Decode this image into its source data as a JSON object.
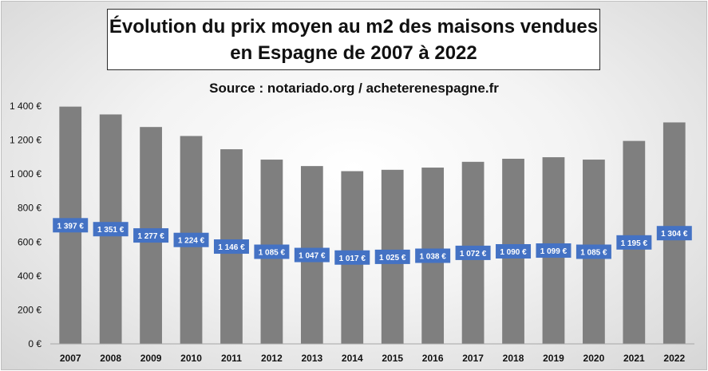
{
  "chart_data": {
    "type": "bar",
    "title_lines": [
      "Évolution du prix moyen au m2 des maisons vendues",
      "en Espagne de 2007 à 2022"
    ],
    "subtitle": "Source : notariado.org / acheterenespagne.fr",
    "categories": [
      "2007",
      "2008",
      "2009",
      "2010",
      "2011",
      "2012",
      "2013",
      "2014",
      "2015",
      "2016",
      "2017",
      "2018",
      "2019",
      "2020",
      "2021",
      "2022"
    ],
    "values": [
      1397,
      1351,
      1277,
      1224,
      1146,
      1085,
      1047,
      1017,
      1025,
      1038,
      1072,
      1090,
      1099,
      1085,
      1195,
      1304
    ],
    "data_labels": [
      "1 397 €",
      "1 351 €",
      "1 277 €",
      "1 224 €",
      "1 146 €",
      "1 085 €",
      "1 047 €",
      "1 017 €",
      "1 025 €",
      "1 038 €",
      "1 072 €",
      "1 090 €",
      "1 099 €",
      "1 085 €",
      "1 195 €",
      "1 304 €"
    ],
    "y_ticks": [
      0,
      200,
      400,
      600,
      800,
      1000,
      1200,
      1400
    ],
    "y_tick_labels": [
      "0 €",
      "200 €",
      "400 €",
      "600 €",
      "800 €",
      "1 000 €",
      "1 200 €",
      "1 400 €"
    ],
    "ylim": [
      0,
      1400
    ],
    "grid": false,
    "legend": "none",
    "colors": {
      "bar": "#7f7f7f",
      "label_box": "#4472c4",
      "axis": "#a6a6a6"
    }
  }
}
